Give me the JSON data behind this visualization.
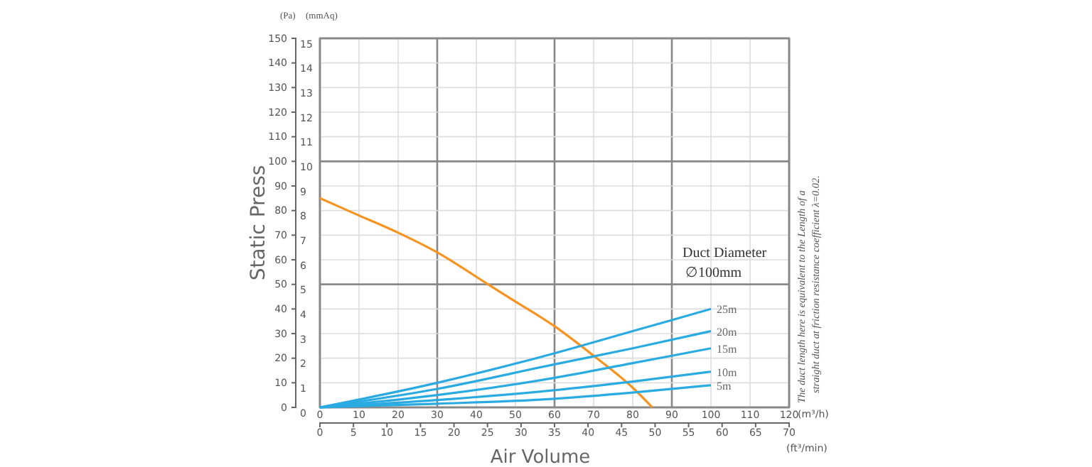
{
  "chart_data": {
    "type": "line",
    "xlabel": "Air Volume",
    "ylabel": "Static Press",
    "annotations": [
      "(Pa)",
      "(mmAq)",
      "(m³/h)",
      "(ft³/min)",
      "Duct Diameter",
      "∅100mm",
      "The duct length here is equivalent to the Length of a",
      "straight duct at friction resistance coefficient λ=0.02."
    ],
    "xlim": [
      0,
      120
    ],
    "xticks": [
      0,
      10,
      20,
      30,
      40,
      50,
      60,
      70,
      80,
      90,
      100,
      110,
      120
    ],
    "x2lim": [
      0,
      70
    ],
    "x2ticks": [
      0,
      5,
      10,
      15,
      20,
      25,
      30,
      35,
      40,
      45,
      50,
      55,
      60,
      65,
      70
    ],
    "ylim": [
      0,
      150
    ],
    "yticks": [
      0,
      10,
      20,
      30,
      40,
      50,
      60,
      70,
      80,
      90,
      100,
      110,
      120,
      130,
      140,
      150
    ],
    "y2lim": [
      0,
      15
    ],
    "y2ticks": [
      0,
      1,
      2,
      3,
      4,
      5,
      6,
      7,
      8,
      9,
      10,
      11,
      12,
      13,
      14,
      15
    ],
    "grid": true,
    "marker": "none",
    "line_style": "solid",
    "series": [
      {
        "color": "#f7931e",
        "x": [
          0,
          10,
          20,
          30,
          43,
          50,
          60,
          70,
          80,
          85
        ],
        "values": [
          85,
          78,
          71,
          63,
          50,
          43,
          33,
          21,
          8,
          0
        ]
      },
      {
        "name": "25m",
        "color": "#29abe2",
        "x": [
          0,
          30,
          60,
          80,
          100
        ],
        "values": [
          0,
          10,
          22,
          31,
          40
        ]
      },
      {
        "name": "20m",
        "color": "#29abe2",
        "x": [
          0,
          30,
          60,
          80,
          100
        ],
        "values": [
          0,
          7.5,
          17.5,
          24,
          31
        ]
      },
      {
        "name": "15m",
        "color": "#29abe2",
        "x": [
          0,
          30,
          60,
          80,
          100
        ],
        "values": [
          0,
          5,
          12,
          18,
          24
        ]
      },
      {
        "name": "10m",
        "color": "#29abe2",
        "x": [
          0,
          30,
          60,
          80,
          100
        ],
        "values": [
          0,
          3,
          7,
          10.5,
          14.5
        ]
      },
      {
        "name": "5m",
        "color": "#29abe2",
        "x": [
          0,
          30,
          60,
          80,
          100
        ],
        "values": [
          0,
          1.5,
          3.5,
          6,
          9
        ]
      }
    ]
  }
}
